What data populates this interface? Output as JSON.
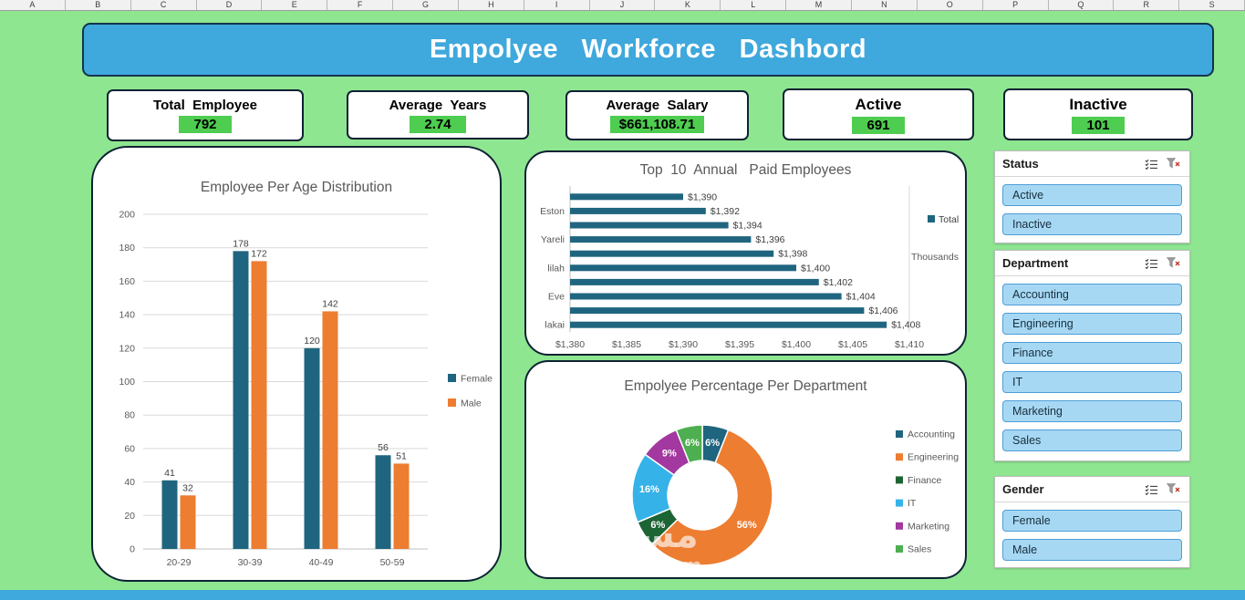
{
  "spreadsheet": {
    "columns": [
      "A",
      "B",
      "C",
      "D",
      "E",
      "F",
      "G",
      "H",
      "I",
      "J",
      "K",
      "L",
      "M",
      "N",
      "O",
      "P",
      "Q",
      "R",
      "S"
    ]
  },
  "header": {
    "title": "Empolyee   Workforce   Dashbord"
  },
  "kpis": [
    {
      "label": "Total  Employee",
      "value": "792"
    },
    {
      "label": "Average  Years",
      "value": "2.74"
    },
    {
      "label": "Average  Salary",
      "value": "$661,108.71"
    },
    {
      "label": "Active",
      "value": "691"
    },
    {
      "label": "Inactive",
      "value": "101"
    }
  ],
  "chart_data": [
    {
      "type": "bar",
      "title": "Employee Per Age Distribution",
      "categories": [
        "20-29",
        "30-39",
        "40-49",
        "50-59"
      ],
      "series": [
        {
          "name": "Female",
          "color": "#20657f",
          "values": [
            41,
            178,
            120,
            56
          ]
        },
        {
          "name": "Male",
          "color": "#ed7d31",
          "values": [
            32,
            172,
            142,
            51
          ]
        }
      ],
      "ylim": [
        0,
        200
      ],
      "ytick": 20,
      "grid": true,
      "legend_position": "right"
    },
    {
      "type": "horizontal-bar",
      "title": "Top  10  Annual   Paid Employees",
      "categories": [
        "",
        "Eston",
        "",
        "Yareli",
        "",
        "lilah",
        "",
        "Eve",
        "",
        "lakai"
      ],
      "values": [
        1390,
        1392,
        1394,
        1396,
        1398,
        1400,
        1402,
        1404,
        1406,
        1408
      ],
      "labels": [
        "$1,390",
        "$1,392",
        "$1,394",
        "$1,396",
        "$1,398",
        "$1,400",
        "$1,402",
        "$1,404",
        "$1,406",
        "$1,408"
      ],
      "xlim": [
        1380,
        1410
      ],
      "xticks": [
        "$1,380",
        "$1,385",
        "$1,390",
        "$1,395",
        "$1,400",
        "$1,405",
        "$1,410"
      ],
      "legend": "Total",
      "axis_note": "Thousands",
      "color": "#20657f"
    },
    {
      "type": "donut",
      "title": "Empolyee Percentage Per Department",
      "categories": [
        "Accounting",
        "Engineering",
        "Finance",
        "IT",
        "Marketing",
        "Sales"
      ],
      "values": [
        6,
        56,
        6,
        16,
        9,
        6
      ],
      "labels": [
        "6%",
        "56%",
        "6%",
        "16%",
        "9%",
        "6%"
      ],
      "colors": [
        "#20657f",
        "#ed7d31",
        "#1d6434",
        "#35b2e8",
        "#a238a0",
        "#4daf50"
      ],
      "legend_position": "right"
    }
  ],
  "slicers": [
    {
      "title": "Status",
      "items": [
        "Active",
        "Inactive"
      ]
    },
    {
      "title": "Department",
      "items": [
        "Accounting",
        "Engineering",
        "Finance",
        "IT",
        "Marketing",
        "Sales"
      ]
    },
    {
      "title": "Gender",
      "items": [
        "Female",
        "Male"
      ]
    }
  ],
  "watermark": {
    "arabic": "مستقل",
    "domain": "mostaql.com"
  },
  "colors": {
    "background": "#8ee690",
    "banner": "#3fa8dc",
    "kpi_highlight": "#4ecd50",
    "slicer_button": "#a7d8f3"
  }
}
